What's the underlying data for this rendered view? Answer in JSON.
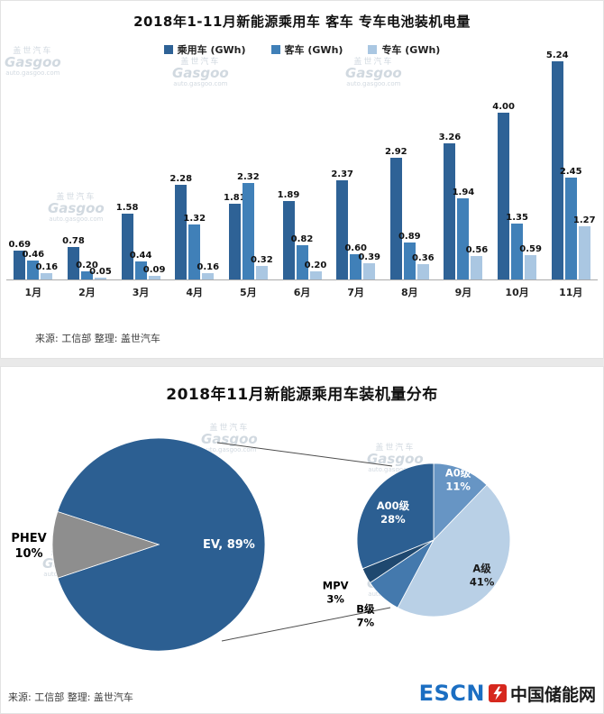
{
  "watermark": {
    "brand_cn": "盖世汽车",
    "brand_en": "Gasgoo",
    "site": "auto.gasgoo.com"
  },
  "logo": {
    "escn": "ESCN",
    "site_name": "中国储能网",
    "escn_color": "#1b6ec2",
    "mark_color": "#d6281e"
  },
  "chart_data": [
    {
      "type": "bar",
      "title": "2018年1-11月新能源乘用车 客车 专车电池装机电量",
      "source": "来源: 工信部 整理: 盖世汽车",
      "unit": "GWh",
      "categories": [
        "1月",
        "2月",
        "3月",
        "4月",
        "5月",
        "6月",
        "7月",
        "8月",
        "9月",
        "10月",
        "11月"
      ],
      "series": [
        {
          "name": "乘用车",
          "legend": "乘用车 (GWh)",
          "color": "#2e6296",
          "values": [
            0.69,
            0.78,
            1.58,
            2.28,
            1.81,
            1.89,
            2.37,
            2.92,
            3.26,
            4.0,
            5.24
          ]
        },
        {
          "name": "客车",
          "legend": "客车 (GWh)",
          "color": "#4080b8",
          "values": [
            0.46,
            0.2,
            0.44,
            1.32,
            2.32,
            0.82,
            0.6,
            0.89,
            1.94,
            1.35,
            2.45
          ]
        },
        {
          "name": "专车",
          "legend": "专车 (GWh)",
          "color": "#aac7e2",
          "values": [
            0.16,
            0.05,
            0.09,
            0.16,
            0.32,
            0.2,
            0.39,
            0.36,
            0.56,
            0.59,
            1.27
          ]
        }
      ],
      "ylim": [
        0,
        5.45
      ],
      "grid": false,
      "legend_position": "top"
    },
    {
      "type": "pie",
      "title": "2018年11月新能源乘用车装机量分布",
      "source": "来源: 工信部 整理: 盖世汽车",
      "start_angle": 198,
      "slices": [
        {
          "label": "EV",
          "value": 89,
          "color": "#2c5f92",
          "label_lines": [
            "EV, 89%"
          ],
          "label_color": "#ffffff",
          "label_radius": 0.66
        },
        {
          "label": "PHEV",
          "value": 10,
          "color": "#8e8e8e",
          "label_lines": [
            "PHEV",
            "10%"
          ],
          "label_color": "#000000",
          "label_radius": 1.22
        }
      ]
    },
    {
      "type": "pie",
      "start_angle": 270,
      "slices": [
        {
          "label": "A0级",
          "value": 11,
          "color": "#6795c4",
          "label_lines": [
            "A0级",
            "11%"
          ],
          "label_color": "#ffffff",
          "label_radius": 0.85
        },
        {
          "label": "A级",
          "value": 41,
          "color": "#b9d0e6",
          "label_lines": [
            "A级",
            "41%"
          ],
          "label_color": "#1a1a1a",
          "label_radius": 0.78
        },
        {
          "label": "B级",
          "value": 7,
          "color": "#4479ad",
          "label_lines": [
            "B级",
            "7%"
          ],
          "label_color": "#000000",
          "label_radius": 1.33
        },
        {
          "label": "MPV",
          "value": 3,
          "color": "#1f486f",
          "label_lines": [
            "MPV",
            "3%"
          ],
          "label_color": "#000000",
          "label_radius": 1.45
        },
        {
          "label": "A00级",
          "value": 28,
          "color": "#2c5f92",
          "label_lines": [
            "A00级",
            "28%"
          ],
          "label_color": "#ffffff",
          "label_radius": 0.64
        }
      ]
    }
  ]
}
